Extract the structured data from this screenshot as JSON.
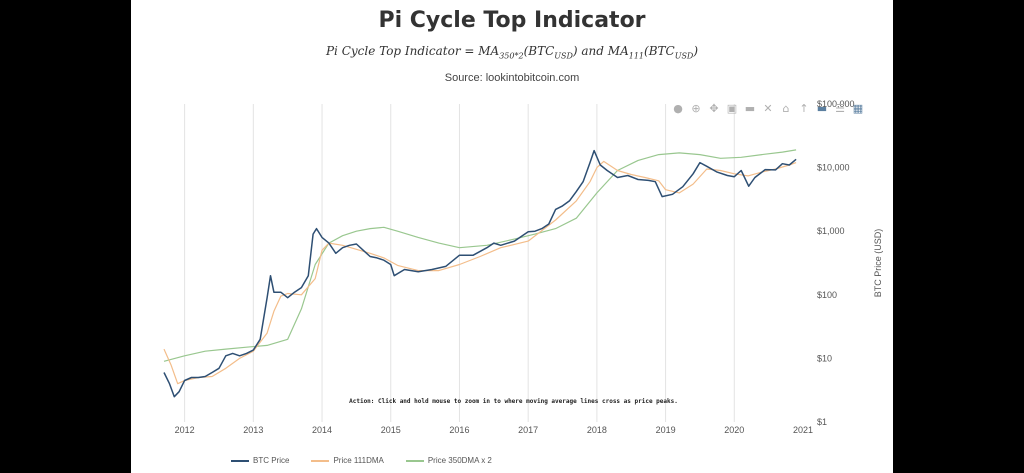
{
  "title": "Pi Cycle Top Indicator",
  "formula": {
    "lhs": "Pi Cycle Top Indicator = MA",
    "sub1": "350*2",
    "mid1": "(BTC",
    "sub2": "USD",
    "mid2": ") and MA",
    "sub3": "111",
    "mid3": "(BTC",
    "sub4": "USD",
    "end": ")"
  },
  "source": "Source: lookintobitcoin.com",
  "modebar": {
    "icons": [
      "camera-icon",
      "zoom-icon",
      "pan-icon",
      "zoom-in-icon",
      "zoom-out-icon",
      "autoscale-icon",
      "home-icon",
      "spike-lines-icon",
      "hover-closest-icon",
      "hover-compare-icon",
      "plotly-logo-icon"
    ]
  },
  "chart_data": {
    "type": "line",
    "title": "Pi Cycle Top Indicator",
    "ylabel": "BTC Price (USD)",
    "xlabel": "",
    "yscale": "log",
    "ylim": [
      1,
      100000
    ],
    "xlim": [
      2011.7,
      2021.0
    ],
    "x_ticks": [
      "2012",
      "2013",
      "2014",
      "2015",
      "2016",
      "2017",
      "2018",
      "2019",
      "2020",
      "2021"
    ],
    "y_ticks": [
      "$1",
      "$10",
      "$100",
      "$1,000",
      "$10,000",
      "$100,000"
    ],
    "grid": "vertical",
    "legend_placement": "bottom",
    "annotation": "Action: Click and hold mouse to zoom in to where moving average lines cross as price peaks.",
    "series": [
      {
        "name": "BTC Price",
        "color": "#2e4f73",
        "x": [
          2011.7,
          2011.78,
          2011.85,
          2011.92,
          2012.0,
          2012.1,
          2012.2,
          2012.3,
          2012.4,
          2012.5,
          2012.6,
          2012.7,
          2012.8,
          2012.9,
          2013.0,
          2013.1,
          2013.2,
          2013.25,
          2013.3,
          2013.4,
          2013.5,
          2013.6,
          2013.7,
          2013.8,
          2013.87,
          2013.92,
          2014.0,
          2014.1,
          2014.2,
          2014.3,
          2014.4,
          2014.5,
          2014.6,
          2014.7,
          2014.8,
          2014.9,
          2015.0,
          2015.05,
          2015.2,
          2015.4,
          2015.6,
          2015.8,
          2016.0,
          2016.2,
          2016.4,
          2016.5,
          2016.6,
          2016.8,
          2017.0,
          2017.1,
          2017.2,
          2017.3,
          2017.4,
          2017.5,
          2017.6,
          2017.7,
          2017.8,
          2017.9,
          2017.96,
          2018.05,
          2018.15,
          2018.3,
          2018.45,
          2018.6,
          2018.75,
          2018.85,
          2018.95,
          2019.1,
          2019.25,
          2019.4,
          2019.5,
          2019.6,
          2019.75,
          2019.9,
          2020.0,
          2020.1,
          2020.21,
          2020.3,
          2020.45,
          2020.6,
          2020.7,
          2020.8,
          2020.9
        ],
        "values": [
          6,
          4,
          2.5,
          3,
          4.5,
          5,
          5,
          5.2,
          6,
          7,
          11,
          12,
          11,
          12,
          13.5,
          20,
          90,
          200,
          110,
          110,
          90,
          110,
          130,
          200,
          900,
          1100,
          800,
          650,
          450,
          550,
          600,
          630,
          500,
          400,
          380,
          350,
          300,
          200,
          250,
          230,
          250,
          280,
          420,
          420,
          550,
          650,
          600,
          700,
          980,
          1000,
          1100,
          1300,
          2200,
          2500,
          3000,
          4200,
          6000,
          12000,
          18500,
          11000,
          9000,
          7000,
          7500,
          6500,
          6300,
          6000,
          3500,
          3800,
          5000,
          8000,
          12000,
          10500,
          8500,
          7500,
          7200,
          9000,
          5100,
          7000,
          9300,
          9200,
          11500,
          11000,
          13500
        ]
      },
      {
        "name": "Price 111DMA",
        "color": "#f3bd8a",
        "x": [
          2011.7,
          2011.8,
          2011.9,
          2012.0,
          2012.2,
          2012.4,
          2012.6,
          2012.8,
          2013.0,
          2013.2,
          2013.3,
          2013.4,
          2013.5,
          2013.7,
          2013.9,
          2014.0,
          2014.1,
          2014.3,
          2014.5,
          2014.7,
          2014.9,
          2015.1,
          2015.4,
          2015.7,
          2016.0,
          2016.3,
          2016.6,
          2017.0,
          2017.4,
          2017.7,
          2017.9,
          2018.0,
          2018.1,
          2018.3,
          2018.5,
          2018.7,
          2018.9,
          2019.0,
          2019.2,
          2019.4,
          2019.6,
          2019.8,
          2020.0,
          2020.2,
          2020.4,
          2020.6,
          2020.8,
          2020.9
        ],
        "values": [
          14,
          8,
          4,
          4.5,
          5,
          5.2,
          7,
          10,
          13,
          25,
          55,
          95,
          105,
          100,
          180,
          500,
          650,
          600,
          520,
          450,
          380,
          290,
          240,
          240,
          300,
          400,
          550,
          700,
          1500,
          3000,
          6000,
          10000,
          12500,
          9000,
          7800,
          7000,
          6200,
          4500,
          4000,
          5500,
          9500,
          9000,
          8000,
          7400,
          8500,
          9500,
          11000,
          12000
        ]
      },
      {
        "name": "Price 350DMA x 2",
        "color": "#99c78f",
        "x": [
          2011.7,
          2012.0,
          2012.3,
          2012.6,
          2012.9,
          2013.2,
          2013.5,
          2013.7,
          2013.9,
          2014.1,
          2014.3,
          2014.5,
          2014.7,
          2014.9,
          2015.1,
          2015.4,
          2015.7,
          2016.0,
          2016.4,
          2016.8,
          2017.1,
          2017.4,
          2017.7,
          2018.0,
          2018.3,
          2018.6,
          2018.9,
          2019.2,
          2019.5,
          2019.8,
          2020.1,
          2020.4,
          2020.7,
          2020.9
        ],
        "values": [
          9,
          11,
          13,
          14,
          15,
          16,
          20,
          60,
          300,
          650,
          850,
          1000,
          1100,
          1150,
          1000,
          800,
          650,
          550,
          600,
          750,
          900,
          1100,
          1600,
          4000,
          9000,
          13000,
          16000,
          17000,
          16000,
          14000,
          14500,
          16000,
          17500,
          19000
        ]
      }
    ]
  }
}
